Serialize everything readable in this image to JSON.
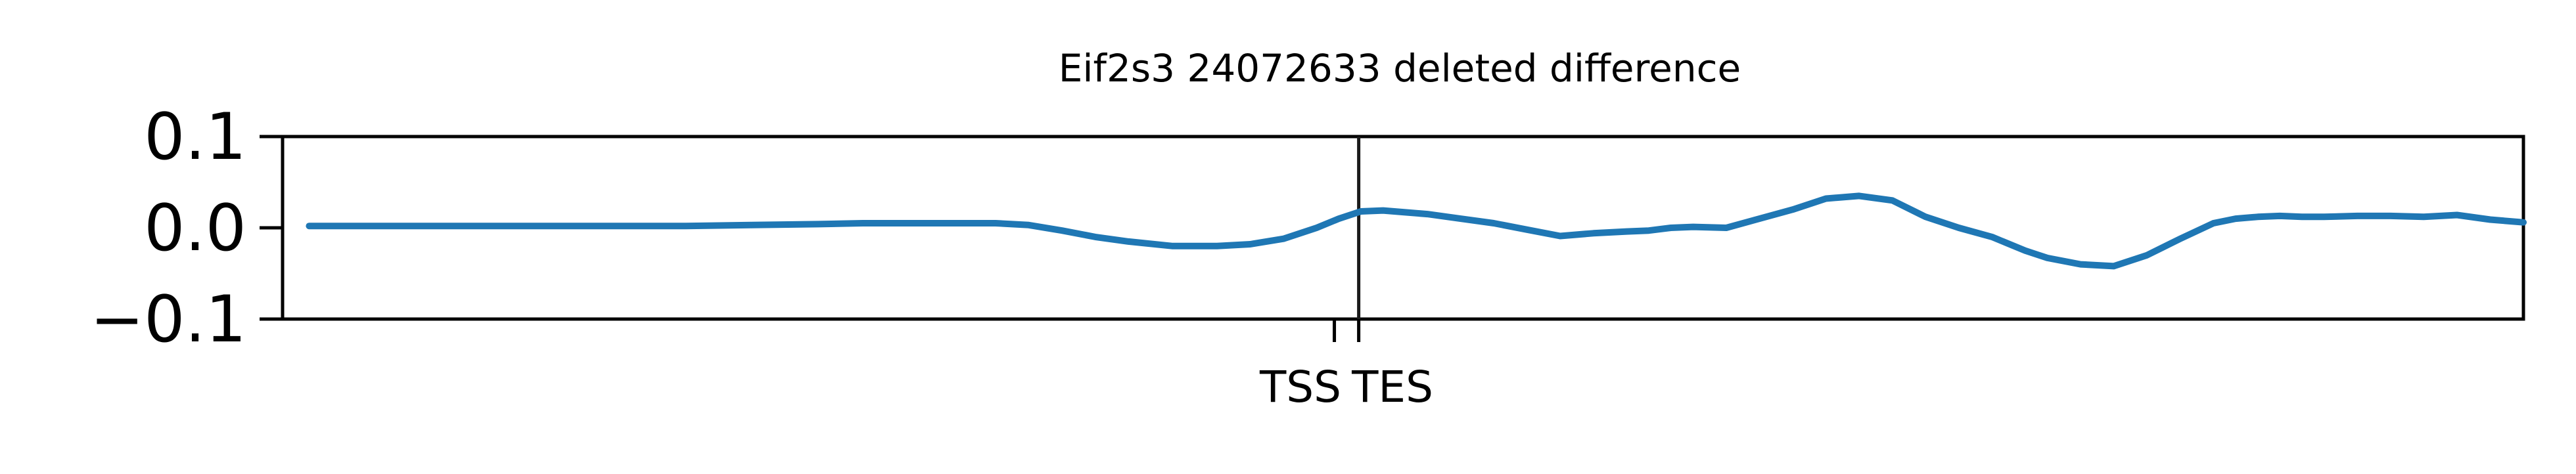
{
  "chart_data": {
    "type": "line",
    "title": "Eif2s3 24072633 deleted difference",
    "xlabel": "",
    "ylabel": "",
    "ylim": [
      -0.1,
      0.1
    ],
    "y_ticks": [
      0.1,
      0.0,
      -0.1
    ],
    "y_tick_labels": [
      "0.1",
      "0.0",
      "−0.1"
    ],
    "x_ticks": [
      {
        "label": "TSS",
        "position": 463
      },
      {
        "label": "TES",
        "position": 474
      }
    ],
    "markers": [
      {
        "label": "TES",
        "position": 474
      }
    ],
    "grid": false,
    "xlim": [
      -12,
      1000
    ],
    "series": [
      {
        "color": "#1f77b4",
        "x": [
          0,
          50,
          100,
          130,
          150,
          170,
          200,
          230,
          250,
          270,
          275,
          285,
          300,
          310,
          325,
          340,
          355,
          370,
          390,
          410,
          425,
          440,
          455,
          465,
          475,
          485,
          495,
          505,
          520,
          535,
          550,
          565,
          580,
          595,
          605,
          615,
          625,
          640,
          655,
          670,
          685,
          700,
          715,
          730,
          745,
          760,
          775,
          785,
          800,
          815,
          830,
          845,
          860,
          870,
          880,
          890,
          900,
          910,
          925,
          940,
          955,
          970,
          985,
          1000
        ],
        "y": [
          0.002,
          0.002,
          0.002,
          0.002,
          0.002,
          0.002,
          0.003,
          0.004,
          0.005,
          0.005,
          0.005,
          0.005,
          0.005,
          0.005,
          0.003,
          -0.003,
          -0.01,
          -0.015,
          -0.02,
          -0.02,
          -0.018,
          -0.012,
          0.0,
          0.01,
          0.018,
          0.019,
          0.017,
          0.015,
          0.01,
          0.005,
          -0.002,
          -0.009,
          -0.006,
          -0.004,
          -0.003,
          0.0,
          0.001,
          0.0,
          0.01,
          0.02,
          0.032,
          0.035,
          0.03,
          0.012,
          0.0,
          -0.01,
          -0.025,
          -0.033,
          -0.04,
          -0.042,
          -0.03,
          -0.012,
          0.005,
          0.01,
          0.012,
          0.013,
          0.012,
          0.012,
          0.013,
          0.013,
          0.012,
          0.014,
          0.009,
          0.006
        ]
      }
    ]
  }
}
